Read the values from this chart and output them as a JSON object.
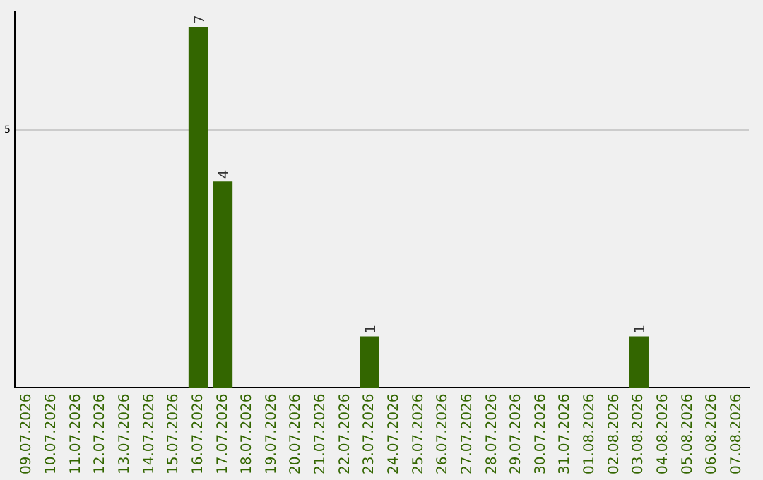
{
  "chart_data": {
    "type": "bar",
    "categories": [
      "09.07.2026",
      "10.07.2026",
      "11.07.2026",
      "12.07.2026",
      "13.07.2026",
      "14.07.2026",
      "15.07.2026",
      "16.07.2026",
      "17.07.2026",
      "18.07.2026",
      "19.07.2026",
      "20.07.2026",
      "21.07.2026",
      "22.07.2026",
      "23.07.2026",
      "24.07.2026",
      "25.07.2026",
      "26.07.2026",
      "27.07.2026",
      "28.07.2026",
      "29.07.2026",
      "30.07.2026",
      "31.07.2026",
      "01.08.2026",
      "02.08.2026",
      "03.08.2026",
      "04.08.2026",
      "05.08.2026",
      "06.08.2026",
      "07.08.2026"
    ],
    "values": [
      0,
      0,
      0,
      0,
      0,
      0,
      0,
      7,
      4,
      0,
      0,
      0,
      0,
      0,
      1,
      0,
      0,
      0,
      0,
      0,
      0,
      0,
      0,
      0,
      0,
      1,
      0,
      0,
      0,
      0
    ],
    "value_labels": [
      null,
      null,
      null,
      null,
      null,
      null,
      null,
      "7",
      "4",
      null,
      null,
      null,
      null,
      null,
      "1",
      null,
      null,
      null,
      null,
      null,
      null,
      null,
      null,
      null,
      null,
      "1",
      null,
      null,
      null,
      null
    ],
    "color": "#336600",
    "ylim": [
      0,
      7.3
    ],
    "yticks": [
      5
    ],
    "grid": "y",
    "legend": false
  }
}
